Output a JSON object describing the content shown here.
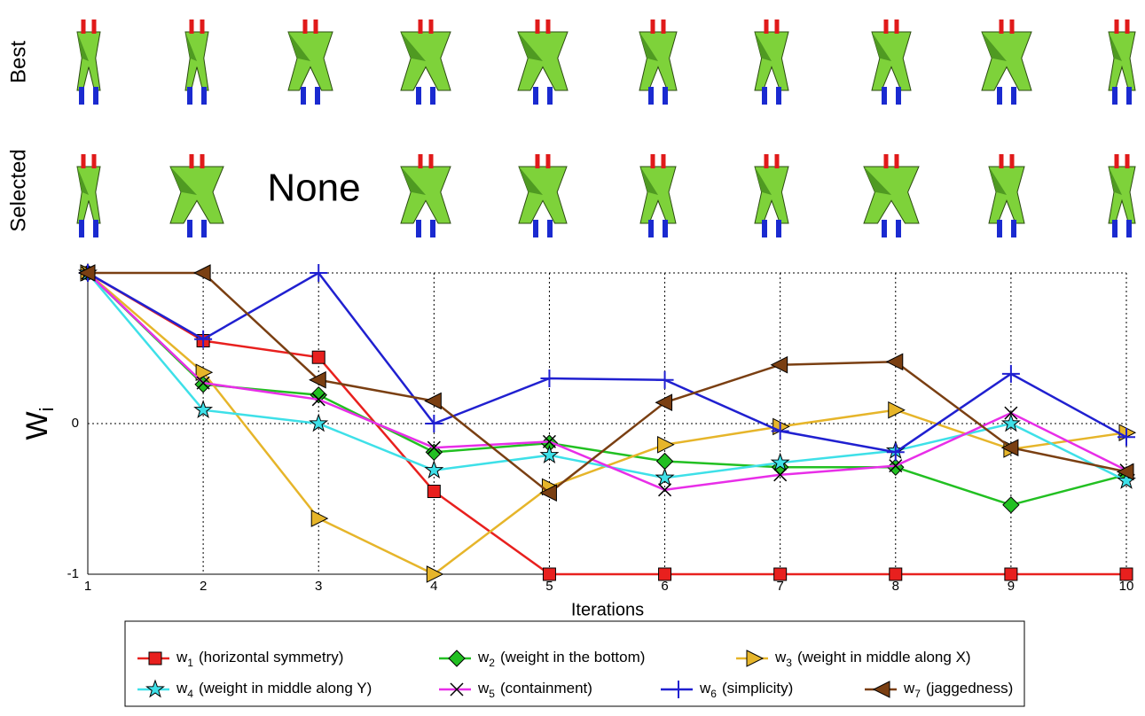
{
  "chart_data": {
    "type": "line",
    "row_labels": [
      "Best",
      "Selected"
    ],
    "none_label": "None",
    "xlabel": "Iterations",
    "ylabel": "W",
    "ylabel_sub": "i",
    "x": [
      1,
      2,
      3,
      4,
      5,
      6,
      7,
      8,
      9,
      10
    ],
    "xlim": [
      1,
      10
    ],
    "xticks": [
      1,
      2,
      3,
      4,
      5,
      6,
      7,
      8,
      9,
      10
    ],
    "ylim": [
      -1,
      1
    ],
    "yticks": [
      -1,
      0
    ],
    "grid": true,
    "series": [
      {
        "label": "w",
        "subscript": "1",
        "name": "(horizontal symmetry)",
        "color": "#e8201e",
        "marker": "square",
        "values": [
          1,
          0.55,
          0.44,
          -0.45,
          -1,
          -1,
          -1,
          -1,
          -1,
          -1
        ]
      },
      {
        "label": "w",
        "subscript": "2",
        "name": "(weight in the bottom)",
        "color": "#22c022",
        "marker": "diamond",
        "values": [
          1,
          0.26,
          0.19,
          -0.19,
          -0.13,
          -0.25,
          -0.29,
          -0.29,
          -0.54,
          -0.34
        ]
      },
      {
        "label": "w",
        "subscript": "3",
        "name": "(weight in middle along X)",
        "color": "#e6b52a",
        "marker": "triangle-right",
        "values": [
          1,
          0.34,
          -0.63,
          -1,
          -0.42,
          -0.14,
          -0.02,
          0.09,
          -0.17,
          -0.06
        ]
      },
      {
        "label": "w",
        "subscript": "4",
        "name": "(weight in middle along Y)",
        "color": "#3ee0e8",
        "marker": "star",
        "values": [
          1,
          0.09,
          0,
          -0.31,
          -0.21,
          -0.36,
          -0.26,
          -0.18,
          0,
          -0.38
        ]
      },
      {
        "label": "w",
        "subscript": "5",
        "name": "(containment)",
        "color": "#e82ee8",
        "marker": "x",
        "values": [
          1,
          0.27,
          0.16,
          -0.16,
          -0.12,
          -0.44,
          -0.34,
          -0.28,
          0.07,
          -0.31
        ]
      },
      {
        "label": "w",
        "subscript": "6",
        "name": "(simplicity)",
        "color": "#2020d0",
        "marker": "plus",
        "values": [
          1,
          0.56,
          1,
          0,
          0.3,
          0.29,
          -0.05,
          -0.19,
          0.33,
          -0.09
        ]
      },
      {
        "label": "w",
        "subscript": "7",
        "name": "(jaggedness)",
        "color": "#7a3f12",
        "marker": "triangle-left",
        "values": [
          1,
          1,
          0.29,
          0.15,
          -0.46,
          0.14,
          0.39,
          0.41,
          -0.16,
          -0.32
        ]
      }
    ]
  }
}
